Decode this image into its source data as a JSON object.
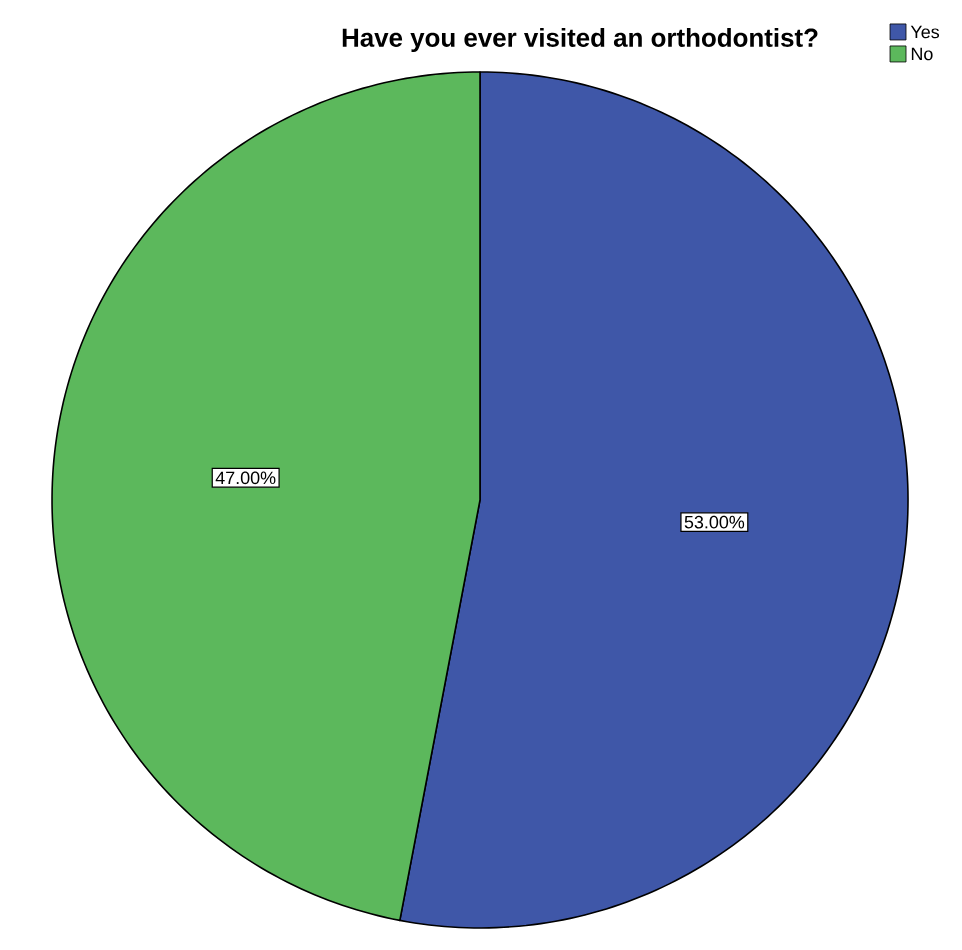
{
  "chart_data": {
    "type": "pie",
    "title": "Have you ever visited an orthodontist?",
    "categories": [
      "Yes",
      "No"
    ],
    "values": [
      53,
      47
    ],
    "colors": [
      "#3f57a8",
      "#5cb85c"
    ],
    "value_labels": [
      "53.00%",
      "47.00%"
    ],
    "legend": "top right"
  }
}
